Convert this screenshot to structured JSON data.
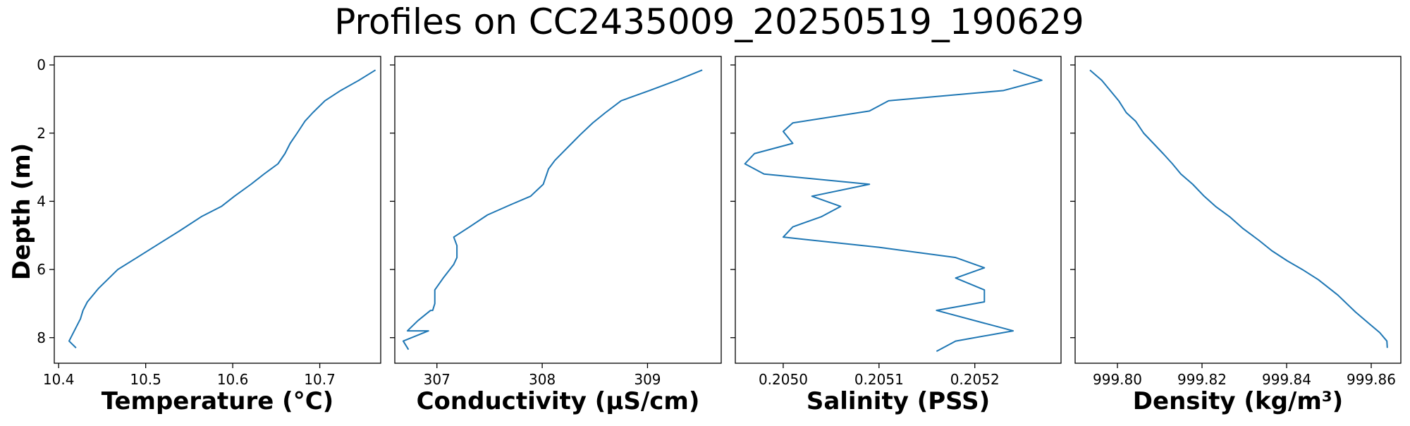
{
  "title": "Profiles on CC2435009_20250519_190629",
  "ylabel": "Depth (m)",
  "colors": {
    "line": "#1f77b4"
  },
  "chart_data": [
    {
      "type": "line",
      "xlabel": "Temperature (°C)",
      "ylabel": "Depth (m)",
      "xlim": [
        10.395,
        10.77
      ],
      "ylim": [
        8.75,
        -0.25
      ],
      "xticks": [
        10.4,
        10.5,
        10.6,
        10.7
      ],
      "xtick_labels": [
        "10.4",
        "10.5",
        "10.6",
        "10.7"
      ],
      "yticks": [
        0,
        2,
        4,
        6,
        8
      ],
      "ytick_labels": [
        "0",
        "2",
        "4",
        "6",
        "8"
      ],
      "grid": false,
      "x": [
        10.764,
        10.745,
        10.724,
        10.706,
        10.692,
        10.683,
        10.674,
        10.666,
        10.66,
        10.652,
        10.636,
        10.621,
        10.602,
        10.587,
        10.564,
        10.54,
        10.515,
        10.49,
        10.468,
        10.458,
        10.446,
        10.433,
        10.428,
        10.425,
        10.418,
        10.412,
        10.42
      ],
      "y": [
        0.15,
        0.45,
        0.75,
        1.05,
        1.4,
        1.65,
        2.0,
        2.3,
        2.6,
        2.9,
        3.2,
        3.5,
        3.85,
        4.15,
        4.45,
        4.85,
        5.25,
        5.65,
        6.0,
        6.25,
        6.55,
        6.95,
        7.2,
        7.45,
        7.8,
        8.1,
        8.3
      ]
    },
    {
      "type": "line",
      "xlabel": "Conductivity (µS/cm)",
      "ylabel": "",
      "xlim": [
        306.6,
        309.7
      ],
      "ylim": [
        8.75,
        -0.25
      ],
      "xticks": [
        307,
        308,
        309
      ],
      "xtick_labels": [
        "307",
        "308",
        "309"
      ],
      "yticks": [
        0,
        2,
        4,
        6,
        8
      ],
      "ytick_labels": [
        "",
        "",
        "",
        "",
        ""
      ],
      "grid": false,
      "x": [
        309.52,
        309.28,
        309.02,
        308.75,
        308.6,
        308.48,
        308.36,
        308.28,
        308.2,
        308.12,
        308.06,
        308.01,
        308.01,
        307.89,
        307.7,
        307.48,
        307.31,
        307.16,
        307.19,
        307.19,
        307.16,
        307.06,
        306.98,
        306.98,
        306.96,
        306.94,
        306.82,
        306.72,
        306.79,
        306.92,
        306.68,
        306.73
      ],
      "y": [
        0.15,
        0.45,
        0.75,
        1.05,
        1.4,
        1.7,
        2.05,
        2.3,
        2.55,
        2.8,
        3.05,
        3.5,
        3.5,
        3.85,
        4.1,
        4.4,
        4.75,
        5.05,
        5.3,
        5.65,
        5.85,
        6.25,
        6.6,
        7.0,
        7.2,
        7.2,
        7.5,
        7.8,
        7.8,
        7.8,
        8.1,
        8.35
      ]
    },
    {
      "type": "line",
      "xlabel": "Salinity (PSS)",
      "ylabel": "",
      "xlim": [
        0.20495,
        0.20529
      ],
      "ylim": [
        8.75,
        -0.25
      ],
      "xticks": [
        0.205,
        0.2051,
        0.2052
      ],
      "xtick_labels": [
        "0.2050",
        "0.2051",
        "0.2052"
      ],
      "yticks": [
        0,
        2,
        4,
        6,
        8
      ],
      "ytick_labels": [
        "",
        "",
        "",
        "",
        ""
      ],
      "grid": false,
      "x": [
        0.20524,
        0.20527,
        0.20523,
        0.20511,
        0.20509,
        0.20501,
        0.205,
        0.20501,
        0.20497,
        0.20496,
        0.20498,
        0.20509,
        0.20503,
        0.20506,
        0.20504,
        0.20501,
        0.205,
        0.2051,
        0.20518,
        0.20521,
        0.20518,
        0.20521,
        0.20521,
        0.20516,
        0.20524,
        0.20518,
        0.20516
      ],
      "y": [
        0.15,
        0.45,
        0.75,
        1.05,
        1.35,
        1.7,
        1.95,
        2.3,
        2.6,
        2.9,
        3.2,
        3.5,
        3.85,
        4.15,
        4.45,
        4.75,
        5.05,
        5.35,
        5.65,
        5.95,
        6.25,
        6.6,
        6.95,
        7.2,
        7.8,
        8.1,
        8.4
      ]
    },
    {
      "type": "line",
      "xlabel": "Density (kg/m³)",
      "ylabel": "",
      "xlim": [
        999.79,
        999.867
      ],
      "ylim": [
        8.75,
        -0.25
      ],
      "xticks": [
        999.8,
        999.82,
        999.84,
        999.86
      ],
      "xtick_labels": [
        "999.80",
        "999.82",
        "999.84",
        "999.86"
      ],
      "yticks": [
        0,
        2,
        4,
        6,
        8
      ],
      "ytick_labels": [
        "",
        "",
        "",
        "",
        ""
      ],
      "grid": false,
      "x": [
        999.7935,
        999.7963,
        999.7983,
        999.8003,
        999.8021,
        999.8043,
        999.8062,
        999.8085,
        999.8108,
        999.813,
        999.815,
        999.8178,
        999.8205,
        999.8232,
        999.8265,
        999.8297,
        999.8335,
        999.8365,
        999.8402,
        999.8437,
        999.8475,
        999.8521,
        999.8542,
        999.8563,
        999.8596,
        999.862,
        999.8637,
        999.8638
      ],
      "y": [
        0.15,
        0.45,
        0.75,
        1.05,
        1.4,
        1.65,
        2.0,
        2.3,
        2.6,
        2.9,
        3.2,
        3.5,
        3.85,
        4.15,
        4.45,
        4.8,
        5.15,
        5.45,
        5.75,
        6.0,
        6.3,
        6.75,
        7.0,
        7.25,
        7.6,
        7.85,
        8.1,
        8.3
      ]
    }
  ]
}
